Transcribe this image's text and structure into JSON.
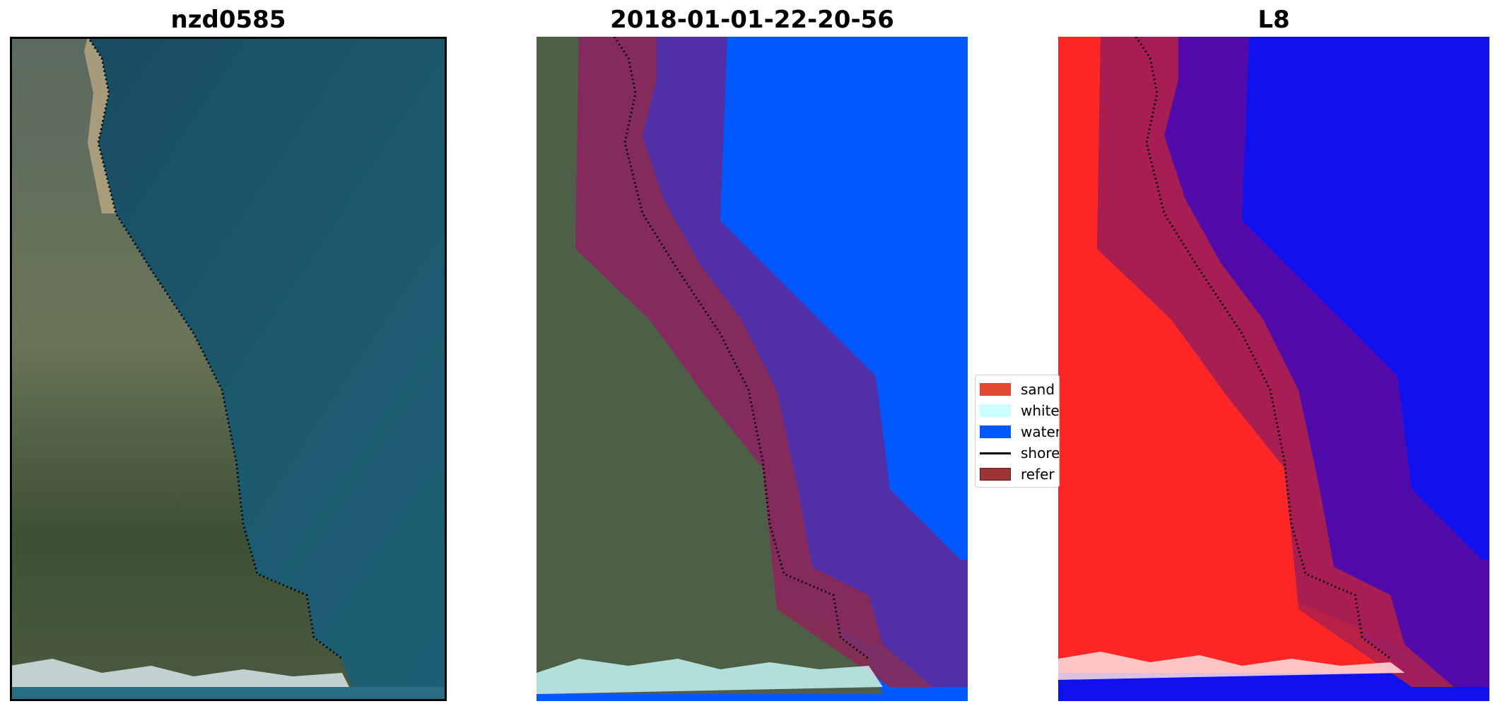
{
  "panels": [
    {
      "title": "nzd0585"
    },
    {
      "title": "2018-01-01-22-20-56"
    },
    {
      "title": "L8"
    }
  ],
  "legend": {
    "items": [
      {
        "label": "sand",
        "color": "#e34a33"
      },
      {
        "label": "white",
        "color": "#ccffff"
      },
      {
        "label": "water",
        "color": "#0059ff"
      },
      {
        "label": "shore",
        "color": "#000000"
      },
      {
        "label": "refer",
        "color": "#9e3434"
      }
    ]
  },
  "colors": {
    "ocean_rgb": "#1b4e64",
    "land_rgb": "#4d5f46",
    "classified_water": "#0059ff",
    "buffer_purple": "#5a2a9c",
    "reference_maroon": "#8a2a55",
    "mndwi_red": "#ff1a1a",
    "mndwi_blue": "#1111ee",
    "shoreline": "#000000"
  }
}
